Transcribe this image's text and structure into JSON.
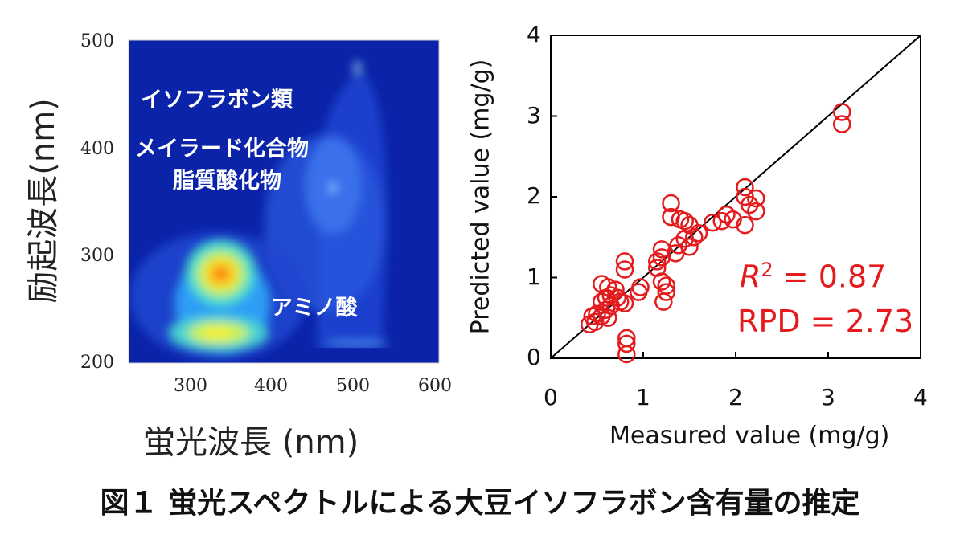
{
  "chart_data": [
    {
      "type": "heatmap",
      "xlabel": "蛍光波長 (nm)",
      "ylabel": "励起波長(nm)",
      "x_ticks": [
        300,
        400,
        500,
        600
      ],
      "y_ticks": [
        200,
        300,
        400,
        500
      ],
      "xlim": [
        220,
        600
      ],
      "ylim": [
        200,
        500
      ],
      "peaks": [
        {
          "ex": 283,
          "em": 335,
          "intensity": 1.0
        },
        {
          "ex": 228,
          "em": 335,
          "intensity": 0.75
        },
        {
          "ex": 363,
          "em": 470,
          "intensity": 0.18
        },
        {
          "ex": 475,
          "em": 500,
          "intensity": 0.2
        }
      ],
      "annotations": [
        "イソフラボン類",
        "メイラード化合物",
        "脂質酸化物",
        "アミノ酸"
      ]
    },
    {
      "type": "scatter",
      "xlabel": "Measured value (mg/g)",
      "ylabel": "Predicted value (mg/g)",
      "xlim": [
        0,
        4
      ],
      "ylim": [
        0,
        4
      ],
      "x_ticks": [
        "0",
        "1",
        "2",
        "3",
        "4"
      ],
      "y_ticks": [
        "0",
        "1",
        "2",
        "3",
        "4"
      ],
      "marker_color": "#e41a1c",
      "reference_line": "1:1",
      "points": [
        [
          3.15,
          3.05
        ],
        [
          3.15,
          2.9
        ],
        [
          2.1,
          2.12
        ],
        [
          2.1,
          2.0
        ],
        [
          2.22,
          1.98
        ],
        [
          2.15,
          1.9
        ],
        [
          2.22,
          1.82
        ],
        [
          2.1,
          1.65
        ],
        [
          1.97,
          1.72
        ],
        [
          1.9,
          1.78
        ],
        [
          1.85,
          1.7
        ],
        [
          1.75,
          1.68
        ],
        [
          1.3,
          1.92
        ],
        [
          1.3,
          1.75
        ],
        [
          1.4,
          1.72
        ],
        [
          1.45,
          1.7
        ],
        [
          1.5,
          1.65
        ],
        [
          1.6,
          1.55
        ],
        [
          1.55,
          1.5
        ],
        [
          1.45,
          1.48
        ],
        [
          1.5,
          1.38
        ],
        [
          1.38,
          1.4
        ],
        [
          1.35,
          1.3
        ],
        [
          1.2,
          1.35
        ],
        [
          1.2,
          1.25
        ],
        [
          1.15,
          1.2
        ],
        [
          1.15,
          1.12
        ],
        [
          1.2,
          0.95
        ],
        [
          1.25,
          0.9
        ],
        [
          1.25,
          0.82
        ],
        [
          1.22,
          0.7
        ],
        [
          0.97,
          0.88
        ],
        [
          0.95,
          0.82
        ],
        [
          0.8,
          1.2
        ],
        [
          0.8,
          1.1
        ],
        [
          0.55,
          0.92
        ],
        [
          0.62,
          0.88
        ],
        [
          0.7,
          0.85
        ],
        [
          0.65,
          0.78
        ],
        [
          0.72,
          0.75
        ],
        [
          0.6,
          0.75
        ],
        [
          0.75,
          0.7
        ],
        [
          0.8,
          0.68
        ],
        [
          0.65,
          0.65
        ],
        [
          0.55,
          0.7
        ],
        [
          0.6,
          0.6
        ],
        [
          0.5,
          0.55
        ],
        [
          0.55,
          0.52
        ],
        [
          0.45,
          0.52
        ],
        [
          0.62,
          0.5
        ],
        [
          0.48,
          0.45
        ],
        [
          0.42,
          0.42
        ],
        [
          0.82,
          0.25
        ],
        [
          0.82,
          0.18
        ],
        [
          0.82,
          0.05
        ]
      ],
      "annotation_r2_symbol": "R",
      "annotation_r2_exp": "2",
      "annotation_r2_value": "= 0.87",
      "annotation_rpd": "RPD = 2.73"
    }
  ],
  "caption": "図１ 蛍光スペクトルによる大豆イソフラボン含有量の推定"
}
